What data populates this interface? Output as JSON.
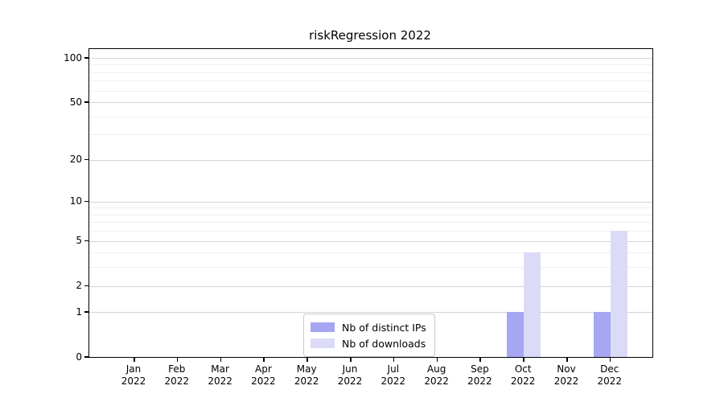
{
  "chart_data": {
    "type": "bar",
    "title": "riskRegression 2022",
    "categories": [
      "Jan",
      "Feb",
      "Mar",
      "Apr",
      "May",
      "Jun",
      "Jul",
      "Aug",
      "Sep",
      "Oct",
      "Nov",
      "Dec"
    ],
    "category_year": "2022",
    "series": [
      {
        "name": "Nb of distinct IPs",
        "color": "#a6a6f2",
        "values": [
          0,
          0,
          0,
          0,
          0,
          0,
          0,
          0,
          0,
          1,
          0,
          1
        ]
      },
      {
        "name": "Nb of downloads",
        "color": "#dbdbf8",
        "values": [
          0,
          0,
          0,
          0,
          0,
          0,
          0,
          0,
          0,
          4,
          0,
          6
        ]
      }
    ],
    "xlabel": "",
    "ylabel": "",
    "yticks": [
      0,
      1,
      2,
      5,
      10,
      20,
      50,
      100
    ],
    "minor_gridlines": [
      3,
      4,
      6,
      7,
      8,
      9,
      30,
      40,
      60,
      70,
      80,
      90
    ],
    "major_gridlines": [
      1,
      2,
      5,
      10,
      20,
      50,
      100
    ],
    "scale": "log1p",
    "ylim": [
      0,
      115
    ],
    "grid": true,
    "legend_position": "lower center",
    "colors": {
      "major_grid": "#d4d4d4",
      "minor_grid": "#efefef",
      "axis": "#000000",
      "background": "#ffffff"
    }
  }
}
